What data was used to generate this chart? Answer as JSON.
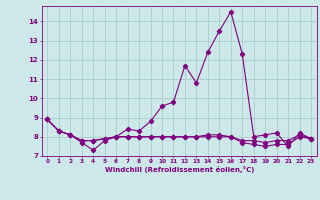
{
  "xlabel": "Windchill (Refroidissement éolien,°C)",
  "bg_color": "#cce8e8",
  "line_color": "#800080",
  "grid_color": "#aacccc",
  "x_values": [
    0,
    1,
    2,
    3,
    4,
    5,
    6,
    7,
    8,
    9,
    10,
    11,
    12,
    13,
    14,
    15,
    16,
    17,
    18,
    19,
    20,
    21,
    22,
    23
  ],
  "line1": [
    8.9,
    8.3,
    8.1,
    7.7,
    7.3,
    7.8,
    8.0,
    8.4,
    8.3,
    8.8,
    9.6,
    9.8,
    11.7,
    10.8,
    12.4,
    13.5,
    14.5,
    12.3,
    8.0,
    8.1,
    8.2,
    7.5,
    8.2,
    7.9
  ],
  "line2": [
    8.9,
    8.3,
    8.1,
    7.8,
    7.8,
    7.9,
    8.0,
    8.0,
    8.0,
    8.0,
    8.0,
    8.0,
    8.0,
    8.0,
    8.0,
    8.0,
    8.0,
    7.8,
    7.8,
    7.7,
    7.8,
    7.8,
    8.1,
    7.9
  ],
  "line3": [
    8.9,
    8.3,
    8.1,
    7.8,
    7.8,
    7.9,
    8.0,
    8.0,
    8.0,
    8.0,
    8.0,
    8.0,
    8.0,
    8.0,
    8.1,
    8.1,
    8.0,
    7.7,
    7.6,
    7.5,
    7.6,
    7.6,
    8.0,
    7.9
  ],
  "ylim": [
    7,
    14.8
  ],
  "yticks": [
    7,
    8,
    9,
    10,
    11,
    12,
    13,
    14
  ],
  "xticks": [
    0,
    1,
    2,
    3,
    4,
    5,
    6,
    7,
    8,
    9,
    10,
    11,
    12,
    13,
    14,
    15,
    16,
    17,
    18,
    19,
    20,
    21,
    22,
    23
  ]
}
